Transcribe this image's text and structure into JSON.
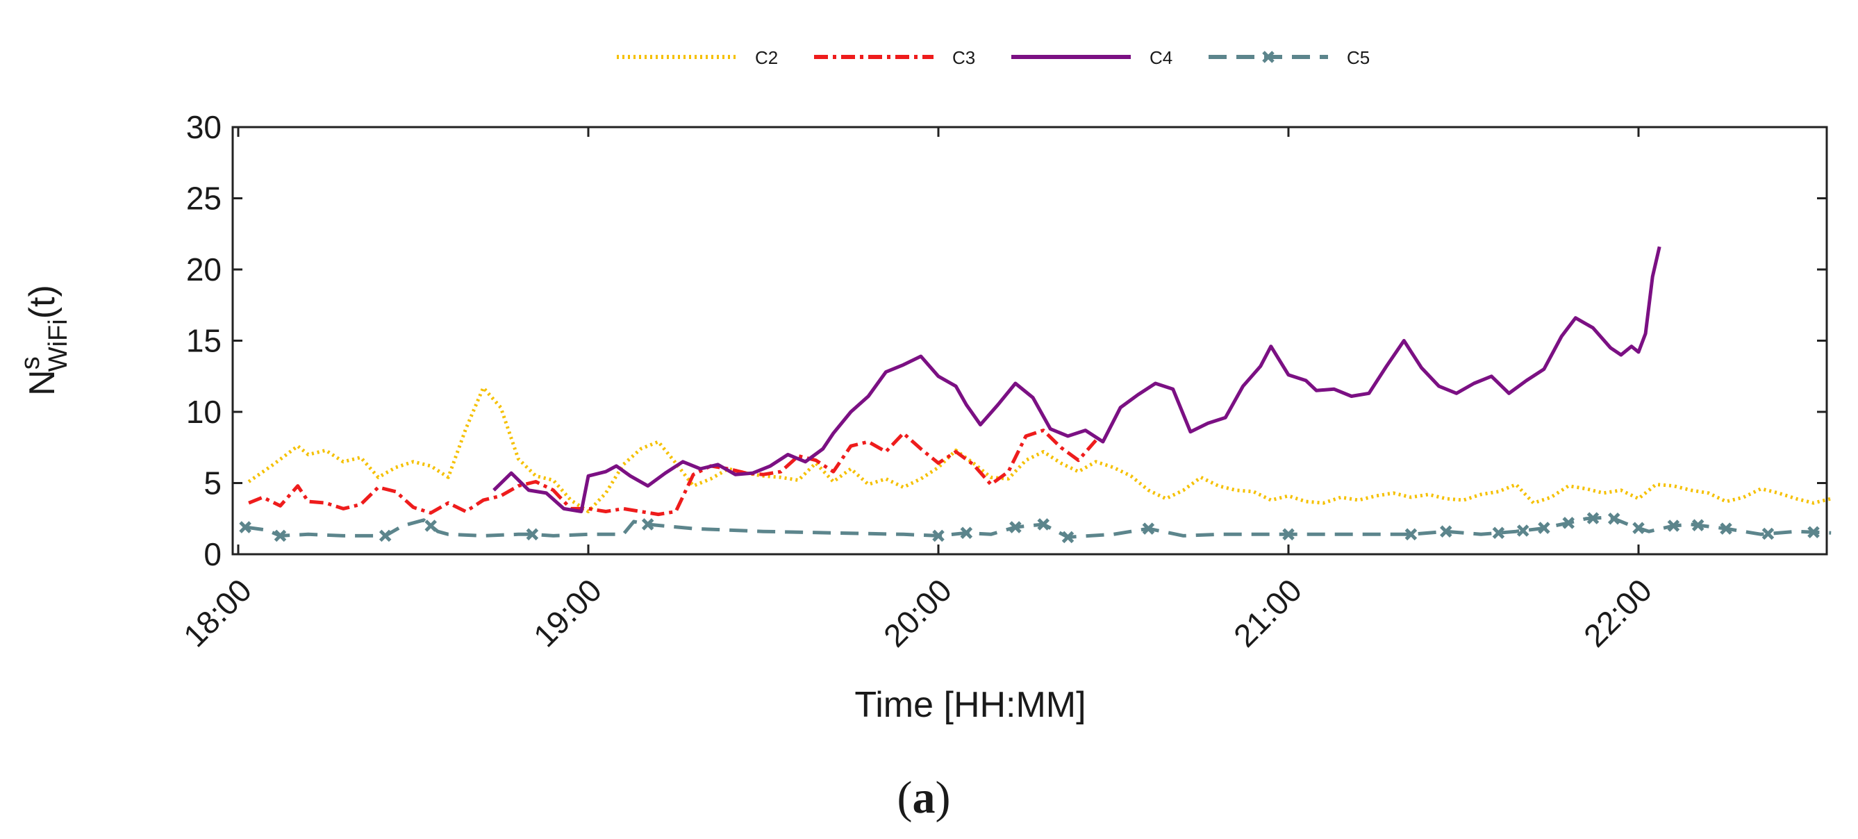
{
  "chart_data": {
    "type": "line",
    "title": "",
    "xlabel": "Time [HH:MM]",
    "ylabel_main": "N",
    "ylabel_super": "s",
    "ylabel_sub": "WiFi",
    "ylabel_tail": "(t)",
    "caption_open": "(",
    "caption_letter": "a",
    "caption_close": ")",
    "xlim": [
      0,
      4.57
    ],
    "ylim": [
      0,
      30
    ],
    "x_ticks": [
      {
        "value": 0,
        "label": "18:00"
      },
      {
        "value": 1,
        "label": "19:00"
      },
      {
        "value": 2,
        "label": "20:00"
      },
      {
        "value": 3,
        "label": "21:00"
      },
      {
        "value": 4,
        "label": "22:00"
      }
    ],
    "y_ticks": [
      0,
      5,
      10,
      15,
      20,
      25,
      30
    ],
    "grid": false,
    "legend_position": "top-center",
    "series": [
      {
        "name": "C2",
        "color": "#f5c000",
        "style": "dotted",
        "x": [
          0.03,
          0.1,
          0.17,
          0.2,
          0.25,
          0.3,
          0.35,
          0.4,
          0.45,
          0.5,
          0.55,
          0.6,
          0.65,
          0.7,
          0.75,
          0.8,
          0.85,
          0.9,
          0.95,
          1.0,
          1.05,
          1.1,
          1.15,
          1.2,
          1.25,
          1.3,
          1.35,
          1.4,
          1.45,
          1.5,
          1.55,
          1.6,
          1.65,
          1.7,
          1.75,
          1.8,
          1.85,
          1.9,
          1.95,
          2.0,
          2.05,
          2.1,
          2.15,
          2.2,
          2.25,
          2.3,
          2.35,
          2.4,
          2.45,
          2.5,
          2.55,
          2.6,
          2.65,
          2.7,
          2.75,
          2.8,
          2.85,
          2.9,
          2.95,
          3.0,
          3.05,
          3.1,
          3.15,
          3.2,
          3.25,
          3.3,
          3.35,
          3.4,
          3.45,
          3.5,
          3.55,
          3.6,
          3.65,
          3.7,
          3.75,
          3.8,
          3.85,
          3.9,
          3.95,
          4.0,
          4.05,
          4.1,
          4.15,
          4.2,
          4.25,
          4.3,
          4.35,
          4.4,
          4.45,
          4.5,
          4.55
        ],
        "values": [
          5.1,
          6.3,
          7.6,
          7.0,
          7.3,
          6.5,
          6.8,
          5.4,
          6.1,
          6.5,
          6.2,
          5.4,
          8.8,
          11.7,
          10.3,
          6.7,
          5.5,
          5.2,
          3.8,
          3.0,
          4.3,
          6.3,
          7.4,
          7.9,
          6.4,
          4.8,
          5.3,
          6.0,
          5.7,
          5.5,
          5.4,
          5.2,
          6.4,
          5.1,
          6.0,
          4.9,
          5.3,
          4.7,
          5.3,
          6.1,
          7.3,
          6.4,
          5.4,
          5.3,
          6.6,
          7.2,
          6.4,
          5.8,
          6.5,
          6.1,
          5.5,
          4.5,
          3.9,
          4.5,
          5.4,
          4.8,
          4.5,
          4.4,
          3.8,
          4.1,
          3.7,
          3.6,
          4.0,
          3.8,
          4.1,
          4.3,
          4.0,
          4.2,
          3.9,
          3.8,
          4.2,
          4.4,
          4.9,
          3.6,
          4.0,
          4.8,
          4.6,
          4.3,
          4.5,
          3.9,
          4.9,
          4.8,
          4.5,
          4.3,
          3.7,
          4.0,
          4.6,
          4.3,
          3.9,
          3.6,
          3.9
        ]
      },
      {
        "name": "C3",
        "color": "#ee1c1c",
        "style": "dashdot",
        "x": [
          0.03,
          0.07,
          0.12,
          0.17,
          0.2,
          0.25,
          0.3,
          0.35,
          0.4,
          0.45,
          0.5,
          0.55,
          0.6,
          0.65,
          0.7,
          0.75,
          0.8,
          0.85,
          0.9,
          0.95,
          1.0,
          1.05,
          1.1,
          1.15,
          1.2,
          1.25,
          1.3,
          1.35,
          1.4,
          1.45,
          1.5,
          1.55,
          1.6,
          1.65,
          1.7,
          1.75,
          1.8,
          1.85,
          1.9,
          1.95,
          2.0,
          2.05,
          2.1,
          2.15,
          2.2,
          2.25,
          2.3,
          2.35,
          2.4,
          2.45
        ],
        "values": [
          3.6,
          4.0,
          3.4,
          4.8,
          3.7,
          3.6,
          3.2,
          3.5,
          4.7,
          4.4,
          3.3,
          2.9,
          3.6,
          3.0,
          3.8,
          4.1,
          4.8,
          5.1,
          4.5,
          3.2,
          3.2,
          3.0,
          3.2,
          3.0,
          2.8,
          3.0,
          5.6,
          6.2,
          6.0,
          5.7,
          5.6,
          5.8,
          6.9,
          6.6,
          5.8,
          7.6,
          7.9,
          7.2,
          8.5,
          7.4,
          6.4,
          7.2,
          6.3,
          4.9,
          5.8,
          8.3,
          8.7,
          7.5,
          6.6,
          8.0
        ]
      },
      {
        "name": "C4",
        "color": "#7b1083",
        "style": "solid",
        "x": [
          0.73,
          0.78,
          0.83,
          0.88,
          0.93,
          0.98,
          1.0,
          1.05,
          1.08,
          1.12,
          1.17,
          1.22,
          1.27,
          1.32,
          1.37,
          1.42,
          1.47,
          1.52,
          1.57,
          1.62,
          1.67,
          1.7,
          1.75,
          1.8,
          1.85,
          1.9,
          1.95,
          2.0,
          2.05,
          2.08,
          2.12,
          2.17,
          2.22,
          2.27,
          2.32,
          2.37,
          2.42,
          2.47,
          2.52,
          2.57,
          2.62,
          2.67,
          2.72,
          2.77,
          2.82,
          2.87,
          2.92,
          2.95,
          3.0,
          3.05,
          3.08,
          3.13,
          3.18,
          3.23,
          3.28,
          3.33,
          3.38,
          3.43,
          3.48,
          3.53,
          3.58,
          3.63,
          3.68,
          3.73,
          3.78,
          3.82,
          3.87,
          3.92,
          3.95,
          3.98,
          4.0,
          4.02,
          4.04,
          4.06
        ],
        "values": [
          4.5,
          5.7,
          4.5,
          4.3,
          3.2,
          3.0,
          5.5,
          5.8,
          6.2,
          5.5,
          4.8,
          5.7,
          6.5,
          6.0,
          6.3,
          5.6,
          5.7,
          6.2,
          7.0,
          6.5,
          7.4,
          8.5,
          10.0,
          11.1,
          12.8,
          13.3,
          13.9,
          12.5,
          11.8,
          10.5,
          9.1,
          10.5,
          12.0,
          11.0,
          8.8,
          8.3,
          8.7,
          7.9,
          10.3,
          11.2,
          12.0,
          11.6,
          8.6,
          9.2,
          9.6,
          11.8,
          13.2,
          14.6,
          12.6,
          12.2,
          11.5,
          11.6,
          11.1,
          11.3,
          13.2,
          15.0,
          13.1,
          11.8,
          11.3,
          12.0,
          12.5,
          11.3,
          12.2,
          13.0,
          15.3,
          16.6,
          15.9,
          14.5,
          14.0,
          14.6,
          14.2,
          15.5,
          19.5,
          21.6
        ]
      },
      {
        "name": "C5",
        "color": "#5c858c",
        "style": "dashed-x",
        "x": [
          0.02,
          0.08,
          0.12,
          0.2,
          0.3,
          0.42,
          0.47,
          0.53,
          0.57,
          0.6,
          0.7,
          0.8,
          0.84,
          0.9,
          1.0,
          1.1,
          1.13,
          1.17,
          1.3,
          1.5,
          1.7,
          1.9,
          2.0,
          2.08,
          2.15,
          2.22,
          2.3,
          2.37,
          2.5,
          2.6,
          2.7,
          2.8,
          3.0,
          3.2,
          3.35,
          3.45,
          3.55,
          3.65,
          3.72,
          3.8,
          3.85,
          3.92,
          3.98,
          4.03,
          4.1,
          4.15,
          4.25,
          4.35,
          4.45,
          4.55
        ],
        "values": [
          1.9,
          1.7,
          1.3,
          1.4,
          1.3,
          1.3,
          2.0,
          2.4,
          1.6,
          1.4,
          1.3,
          1.4,
          1.4,
          1.3,
          1.4,
          1.4,
          2.3,
          2.1,
          1.8,
          1.6,
          1.5,
          1.4,
          1.3,
          1.5,
          1.4,
          1.9,
          2.1,
          1.2,
          1.4,
          1.8,
          1.3,
          1.4,
          1.4,
          1.4,
          1.4,
          1.6,
          1.4,
          1.6,
          1.8,
          2.2,
          2.5,
          2.6,
          2.0,
          1.6,
          2.0,
          2.1,
          1.8,
          1.4,
          1.6,
          1.5
        ],
        "markers_x": [
          0.02,
          0.12,
          0.42,
          0.55,
          0.84,
          1.17,
          2.0,
          2.08,
          2.22,
          2.3,
          2.37,
          2.6,
          3.0,
          3.35,
          3.45,
          3.6,
          3.67,
          3.73,
          3.8,
          3.87,
          3.93,
          4.0,
          4.1,
          4.17,
          4.25,
          4.37,
          4.5
        ]
      }
    ]
  }
}
